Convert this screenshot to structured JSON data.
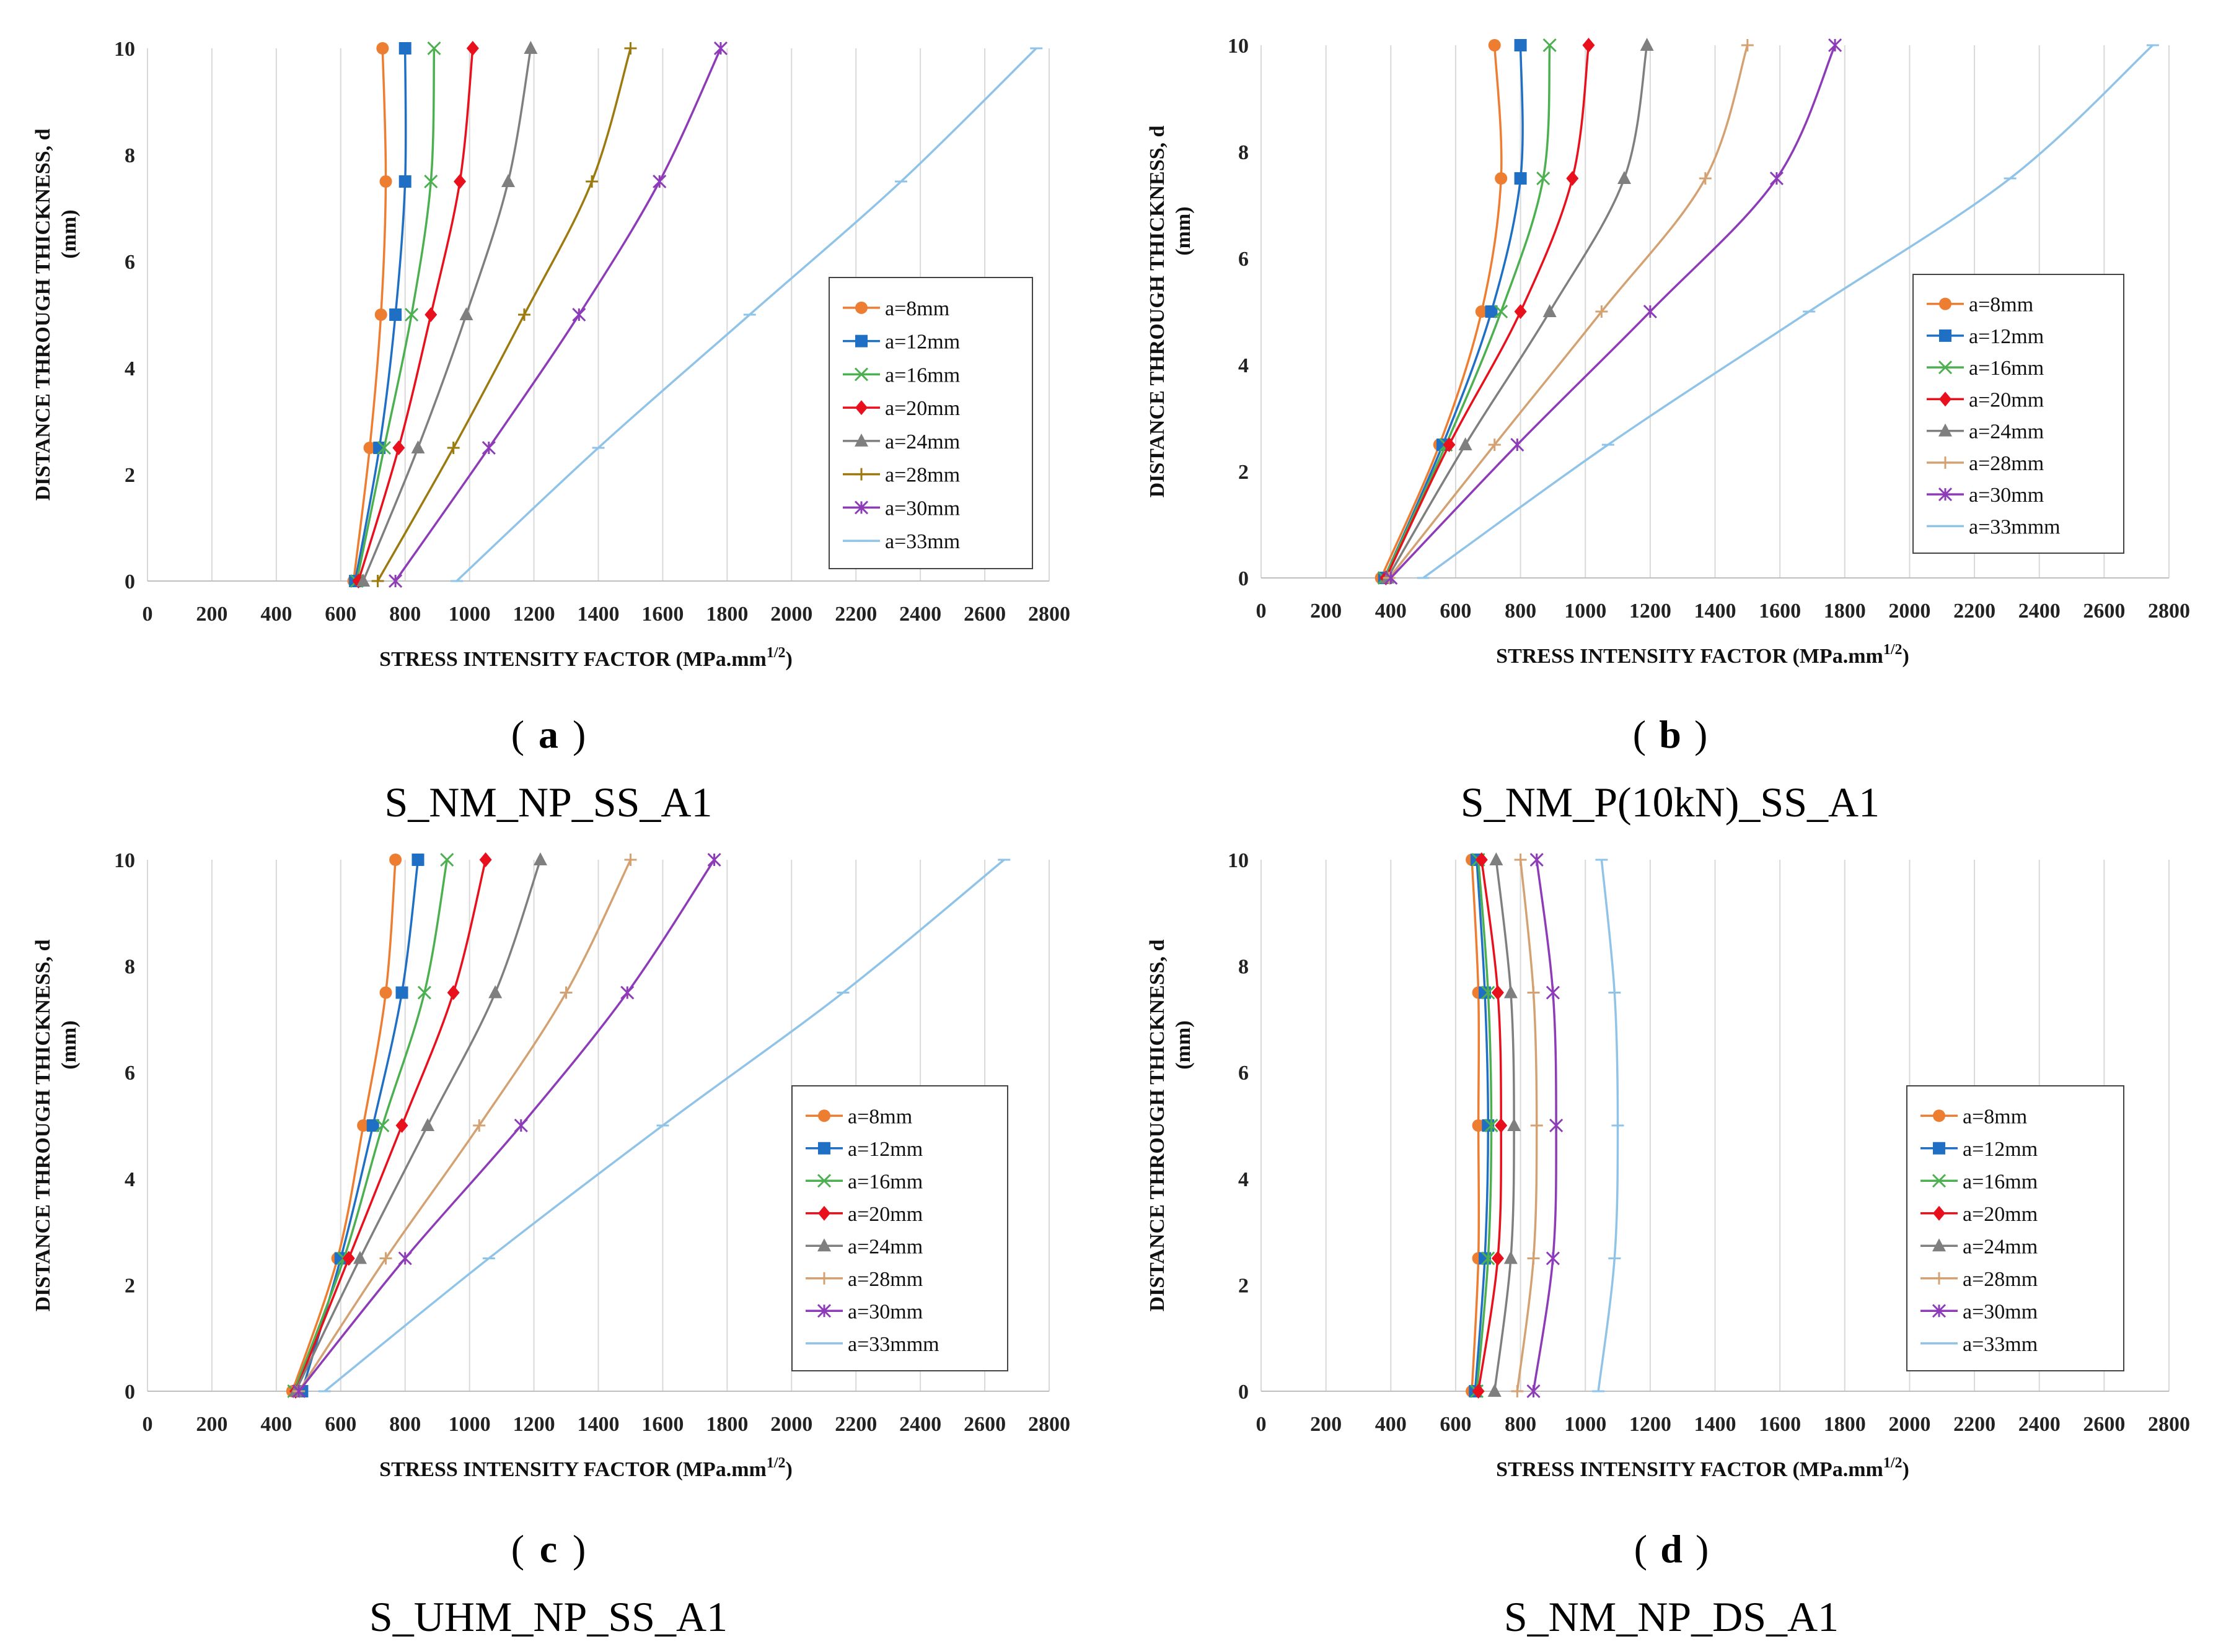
{
  "figure": {
    "panels": [
      {
        "letter": "a",
        "caption": "S_NM_NP_SS_A1"
      },
      {
        "letter": "b",
        "caption": "S_NM_P(10kN)_SS_A1"
      },
      {
        "letter": "c",
        "caption": "S_UHM_NP_SS_A1"
      },
      {
        "letter": "d",
        "caption": "S_NM_NP_DS_A1"
      }
    ]
  },
  "chart_data": [
    {
      "type": "line",
      "title": "S_NM_NP_SS_A1",
      "xlabel": "STRESS INTENSITY FACTOR (MPa.mm",
      "xlabel_sup": "1/2",
      "xlabel_end": ")",
      "ylabel": "DISTANCE THROUGH THICKNESS, d",
      "ylabel2": "(mm)",
      "xlim": [
        0,
        2800
      ],
      "ylim": [
        0,
        10
      ],
      "xticks": [
        0,
        200,
        400,
        600,
        800,
        1000,
        1200,
        1400,
        1600,
        1800,
        2000,
        2200,
        2400,
        2600,
        2800
      ],
      "yticks": [
        0,
        2,
        4,
        6,
        8,
        10
      ],
      "y": [
        0,
        2.5,
        5,
        7.5,
        10
      ],
      "legend_position": "right",
      "series": [
        {
          "name": "a=8mm",
          "color": "#ED7D31",
          "marker": "circle",
          "x": [
            640,
            690,
            725,
            740,
            730
          ]
        },
        {
          "name": "a=12mm",
          "color": "#1F6FC5",
          "marker": "square",
          "x": [
            645,
            720,
            770,
            800,
            800
          ]
        },
        {
          "name": "a=16mm",
          "color": "#4CAF50",
          "marker": "x",
          "x": [
            650,
            735,
            820,
            880,
            890
          ]
        },
        {
          "name": "a=20mm",
          "color": "#E8101C",
          "marker": "diamond",
          "x": [
            655,
            780,
            880,
            970,
            1010
          ]
        },
        {
          "name": "a=24mm",
          "color": "#7F7F7F",
          "marker": "triangle",
          "x": [
            670,
            840,
            990,
            1120,
            1190
          ]
        },
        {
          "name": "a=28mm",
          "color": "#9C7A10",
          "marker": "plus",
          "x": [
            715,
            950,
            1170,
            1380,
            1500
          ]
        },
        {
          "name": "a=30mm",
          "color": "#8E3BB8",
          "marker": "star",
          "x": [
            770,
            1060,
            1340,
            1590,
            1780
          ]
        },
        {
          "name": "a=33mm",
          "color": "#8FC3E8",
          "marker": "dash",
          "x": [
            960,
            1400,
            1870,
            2340,
            2760
          ]
        }
      ]
    },
    {
      "type": "line",
      "title": "S_NM_P(10kN)_SS_A1",
      "xlabel": "STRESS INTENSITY FACTOR (MPa.mm",
      "xlabel_sup": "1/2",
      "xlabel_end": ")",
      "ylabel": "DISTANCE THROUGH THICKNESS, d",
      "ylabel2": "(mm)",
      "xlim": [
        0,
        2800
      ],
      "ylim": [
        0,
        10
      ],
      "xticks": [
        0,
        200,
        400,
        600,
        800,
        1000,
        1200,
        1400,
        1600,
        1800,
        2000,
        2200,
        2400,
        2600,
        2800
      ],
      "yticks": [
        0,
        2,
        4,
        6,
        8,
        10
      ],
      "y": [
        0,
        2.5,
        5,
        7.5,
        10
      ],
      "legend_position": "right",
      "series": [
        {
          "name": "a=8mm",
          "color": "#ED7D31",
          "marker": "circle",
          "x": [
            370,
            550,
            680,
            740,
            720
          ]
        },
        {
          "name": "a=12mm",
          "color": "#1F6FC5",
          "marker": "square",
          "x": [
            380,
            560,
            710,
            800,
            800
          ]
        },
        {
          "name": "a=16mm",
          "color": "#4CAF50",
          "marker": "x",
          "x": [
            380,
            570,
            740,
            870,
            890
          ]
        },
        {
          "name": "a=20mm",
          "color": "#E8101C",
          "marker": "diamond",
          "x": [
            385,
            580,
            800,
            960,
            1010
          ]
        },
        {
          "name": "a=24mm",
          "color": "#7F7F7F",
          "marker": "triangle",
          "x": [
            390,
            630,
            890,
            1120,
            1190
          ]
        },
        {
          "name": "a=28mm",
          "color": "#D4A272",
          "marker": "plus",
          "x": [
            395,
            720,
            1050,
            1370,
            1500
          ]
        },
        {
          "name": "a=30mm",
          "color": "#8E3BB8",
          "marker": "star",
          "x": [
            400,
            790,
            1200,
            1590,
            1770
          ]
        },
        {
          "name": "a=33mmm",
          "color": "#8FC3E8",
          "marker": "dash",
          "x": [
            500,
            1070,
            1690,
            2310,
            2750
          ]
        }
      ]
    },
    {
      "type": "line",
      "title": "S_UHM_NP_SS_A1",
      "xlabel": "STRESS INTENSITY FACTOR (MPa.mm",
      "xlabel_sup": "1/2",
      "xlabel_end": ")",
      "ylabel": "DISTANCE THROUGH THICKNESS, d",
      "ylabel2": "(mm)",
      "xlim": [
        0,
        2800
      ],
      "ylim": [
        0,
        10
      ],
      "xticks": [
        0,
        200,
        400,
        600,
        800,
        1000,
        1200,
        1400,
        1600,
        1800,
        2000,
        2200,
        2400,
        2600,
        2800
      ],
      "yticks": [
        0,
        2,
        4,
        6,
        8,
        10
      ],
      "y": [
        0,
        2.5,
        5,
        7.5,
        10
      ],
      "legend_position": "right",
      "series": [
        {
          "name": "a=8mm",
          "color": "#ED7D31",
          "marker": "circle",
          "x": [
            450,
            590,
            670,
            740,
            770
          ]
        },
        {
          "name": "a=12mm",
          "color": "#1F6FC5",
          "marker": "square",
          "x": [
            480,
            600,
            700,
            790,
            840
          ]
        },
        {
          "name": "a=16mm",
          "color": "#4CAF50",
          "marker": "x",
          "x": [
            455,
            610,
            730,
            860,
            930
          ]
        },
        {
          "name": "a=20mm",
          "color": "#E8101C",
          "marker": "diamond",
          "x": [
            460,
            625,
            790,
            950,
            1050
          ]
        },
        {
          "name": "a=24mm",
          "color": "#7F7F7F",
          "marker": "triangle",
          "x": [
            460,
            660,
            870,
            1080,
            1220
          ]
        },
        {
          "name": "a=28mm",
          "color": "#D4A272",
          "marker": "plus",
          "x": [
            470,
            740,
            1030,
            1300,
            1500
          ]
        },
        {
          "name": "a=30mm",
          "color": "#8E3BB8",
          "marker": "star",
          "x": [
            470,
            800,
            1160,
            1490,
            1760
          ]
        },
        {
          "name": "a=33mmm",
          "color": "#8FC3E8",
          "marker": "dash",
          "x": [
            550,
            1060,
            1600,
            2160,
            2660
          ]
        }
      ]
    },
    {
      "type": "line",
      "title": "S_NM_NP_DS_A1",
      "xlabel": "STRESS INTENSITY FACTOR (MPa.mm",
      "xlabel_sup": "1/2",
      "xlabel_end": ")",
      "ylabel": "DISTANCE THROUGH THICKNESS, d",
      "ylabel2": "(mm)",
      "xlim": [
        0,
        2800
      ],
      "ylim": [
        0,
        10
      ],
      "xticks": [
        0,
        200,
        400,
        600,
        800,
        1000,
        1200,
        1400,
        1600,
        1800,
        2000,
        2200,
        2400,
        2600,
        2800
      ],
      "yticks": [
        0,
        2,
        4,
        6,
        8,
        10
      ],
      "y": [
        0,
        2.5,
        5,
        7.5,
        10
      ],
      "legend_position": "right",
      "series": [
        {
          "name": "a=8mm",
          "color": "#ED7D31",
          "marker": "circle",
          "x": [
            650,
            670,
            670,
            670,
            650
          ]
        },
        {
          "name": "a=12mm",
          "color": "#1F6FC5",
          "marker": "square",
          "x": [
            660,
            690,
            700,
            690,
            665
          ]
        },
        {
          "name": "a=16mm",
          "color": "#4CAF50",
          "marker": "x",
          "x": [
            665,
            700,
            710,
            700,
            670
          ]
        },
        {
          "name": "a=20mm",
          "color": "#E8101C",
          "marker": "diamond",
          "x": [
            670,
            730,
            740,
            730,
            680
          ]
        },
        {
          "name": "a=24mm",
          "color": "#7F7F7F",
          "marker": "triangle",
          "x": [
            720,
            770,
            780,
            770,
            725
          ]
        },
        {
          "name": "a=28mm",
          "color": "#D4A272",
          "marker": "plus",
          "x": [
            790,
            840,
            850,
            840,
            800
          ]
        },
        {
          "name": "a=30mm",
          "color": "#8E3BB8",
          "marker": "star",
          "x": [
            840,
            900,
            910,
            900,
            850
          ]
        },
        {
          "name": "a=33mm",
          "color": "#8FC3E8",
          "marker": "dash",
          "x": [
            1040,
            1090,
            1100,
            1090,
            1050
          ]
        }
      ]
    }
  ]
}
